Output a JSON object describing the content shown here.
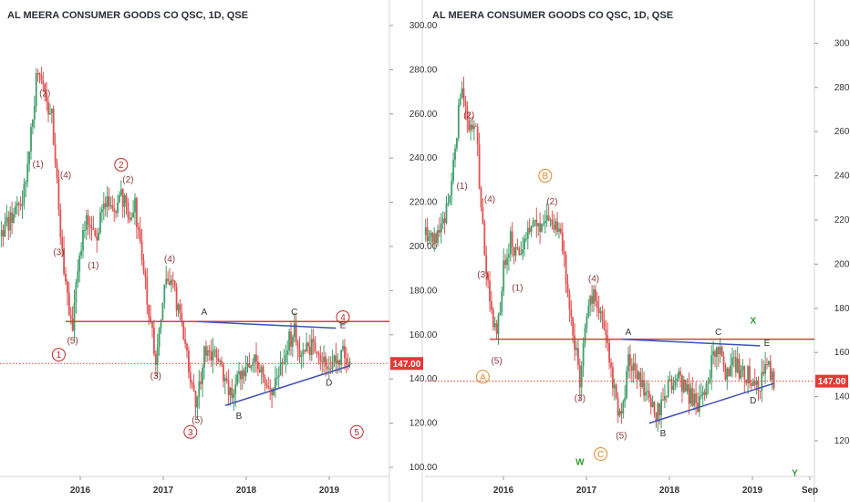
{
  "chart_data": [
    {
      "type": "candlestick",
      "title": "AL MEERA CONSUMER GOODS CO QSC, 1D, QSE",
      "y_ticks": [
        "300.00",
        "280.00",
        "260.00",
        "240.00",
        "220.00",
        "200.00",
        "180.00",
        "160.00",
        "140.00",
        "120.00",
        "100.00"
      ],
      "x_ticks": [
        "2016",
        "2017",
        "2018",
        "2019"
      ],
      "ylim": [
        100,
        300
      ],
      "last_price": 147.0,
      "last_price_label": "147.00",
      "price_path": [
        [
          "2015-01",
          205
        ],
        [
          "2015-03",
          212
        ],
        [
          "2015-05",
          225
        ],
        [
          "2015-07",
          282
        ],
        [
          "2015-08",
          265
        ],
        [
          "2015-09",
          262
        ],
        [
          "2015-10",
          215
        ],
        [
          "2015-11",
          180
        ],
        [
          "2015-12",
          165
        ],
        [
          "2016-01",
          198
        ],
        [
          "2016-02",
          212
        ],
        [
          "2016-03",
          203
        ],
        [
          "2016-05",
          220
        ],
        [
          "2016-06",
          215
        ],
        [
          "2016-07",
          222
        ],
        [
          "2016-08",
          216
        ],
        [
          "2016-09",
          218
        ],
        [
          "2016-10",
          195
        ],
        [
          "2016-11",
          170
        ],
        [
          "2016-12",
          148
        ],
        [
          "2017-01",
          178
        ],
        [
          "2017-02",
          185
        ],
        [
          "2017-03",
          175
        ],
        [
          "2017-04",
          162
        ],
        [
          "2017-05",
          142
        ],
        [
          "2017-06",
          128
        ],
        [
          "2017-07",
          155
        ],
        [
          "2017-08",
          152
        ],
        [
          "2017-10",
          140
        ],
        [
          "2017-11",
          130
        ],
        [
          "2017-12",
          140
        ],
        [
          "2018-02",
          150
        ],
        [
          "2018-04",
          140
        ],
        [
          "2018-05",
          135
        ],
        [
          "2018-07",
          155
        ],
        [
          "2018-08",
          163
        ],
        [
          "2018-09",
          148
        ],
        [
          "2018-10",
          155
        ],
        [
          "2018-12",
          150
        ],
        [
          "2019-02",
          146
        ],
        [
          "2019-03",
          155
        ],
        [
          "2019-04",
          147
        ]
      ],
      "support_line": 166,
      "dotted_line": 147,
      "upper_trend": [
        [
          "2017-06",
          166
        ],
        [
          "2019-02",
          163
        ]
      ],
      "lower_trend": [
        [
          "2017-10",
          128
        ],
        [
          "2019-04",
          146
        ]
      ],
      "annotations": [
        {
          "t": "(2)",
          "d": "2015-08",
          "p": 268,
          "color": "#8b3a3a"
        },
        {
          "t": "(1)",
          "d": "2015-07",
          "p": 236,
          "color": "#8b3a3a"
        },
        {
          "t": "(4)",
          "d": "2015-11",
          "p": 231,
          "color": "#8b3a3a"
        },
        {
          "t": "(3)",
          "d": "2015-10",
          "p": 196,
          "color": "#8b3a3a"
        },
        {
          "t": "(5)",
          "d": "2015-12",
          "p": 156,
          "color": "#8b3a3a"
        },
        {
          "t": "(1)",
          "d": "2016-03",
          "p": 190,
          "color": "#8b3a3a"
        },
        {
          "t": "(2)",
          "d": "2016-08",
          "p": 229,
          "color": "#8b3a3a"
        },
        {
          "t": "(3)",
          "d": "2016-12",
          "p": 140,
          "color": "#8b3a3a"
        },
        {
          "t": "(4)",
          "d": "2017-02",
          "p": 193,
          "color": "#8b3a3a"
        },
        {
          "t": "(5)",
          "d": "2017-06",
          "p": 120,
          "color": "#8b3a3a"
        },
        {
          "t": "A",
          "d": "2017-07",
          "p": 169,
          "color": "#333333"
        },
        {
          "t": "B",
          "d": "2017-12",
          "p": 122,
          "color": "#333333"
        },
        {
          "t": "C",
          "d": "2018-08",
          "p": 169,
          "color": "#333333"
        },
        {
          "t": "D",
          "d": "2019-01",
          "p": 137,
          "color": "#333333"
        },
        {
          "t": "E",
          "d": "2019-03",
          "p": 163,
          "color": "#333333"
        }
      ],
      "circled": [
        {
          "t": "1",
          "d": "2015-10",
          "p": 151,
          "color": "#c62828"
        },
        {
          "t": "2",
          "d": "2016-07",
          "p": 237,
          "color": "#c62828"
        },
        {
          "t": "3",
          "d": "2017-05",
          "p": 116,
          "color": "#c62828"
        },
        {
          "t": "4",
          "d": "2019-03",
          "p": 168,
          "color": "#c62828"
        },
        {
          "t": "5",
          "d": "2019-05",
          "p": 116,
          "color": "#c62828"
        }
      ],
      "plain_labels": []
    },
    {
      "type": "candlestick",
      "title": "AL MEERA CONSUMER GOODS CO QSC, 1D, QSE",
      "y_ticks": [
        "300.00",
        "280.00",
        "260.00",
        "240.00",
        "220.00",
        "200.00",
        "180.00",
        "160.00",
        "140.00",
        "120.00"
      ],
      "x_ticks": [
        "2016",
        "2017",
        "2018",
        "2019",
        "Sep"
      ],
      "ylim": [
        108,
        308
      ],
      "last_price": 147.0,
      "last_price_label": "147.00",
      "price_path": [
        [
          "2015-01",
          215
        ],
        [
          "2015-03",
          210
        ],
        [
          "2015-05",
          225
        ],
        [
          "2015-07",
          282
        ],
        [
          "2015-08",
          265
        ],
        [
          "2015-09",
          262
        ],
        [
          "2015-10",
          215
        ],
        [
          "2015-11",
          180
        ],
        [
          "2015-12",
          165
        ],
        [
          "2016-01",
          198
        ],
        [
          "2016-02",
          212
        ],
        [
          "2016-03",
          203
        ],
        [
          "2016-05",
          220
        ],
        [
          "2016-06",
          215
        ],
        [
          "2016-07",
          222
        ],
        [
          "2016-08",
          216
        ],
        [
          "2016-09",
          218
        ],
        [
          "2016-10",
          195
        ],
        [
          "2016-11",
          170
        ],
        [
          "2016-12",
          148
        ],
        [
          "2017-01",
          178
        ],
        [
          "2017-02",
          185
        ],
        [
          "2017-03",
          175
        ],
        [
          "2017-04",
          162
        ],
        [
          "2017-05",
          142
        ],
        [
          "2017-06",
          128
        ],
        [
          "2017-07",
          155
        ],
        [
          "2017-08",
          152
        ],
        [
          "2017-10",
          140
        ],
        [
          "2017-11",
          130
        ],
        [
          "2017-12",
          140
        ],
        [
          "2018-02",
          150
        ],
        [
          "2018-04",
          140
        ],
        [
          "2018-05",
          135
        ],
        [
          "2018-07",
          155
        ],
        [
          "2018-08",
          163
        ],
        [
          "2018-09",
          148
        ],
        [
          "2018-10",
          155
        ],
        [
          "2018-12",
          150
        ],
        [
          "2019-02",
          146
        ],
        [
          "2019-03",
          155
        ],
        [
          "2019-04",
          147
        ]
      ],
      "support_line": 166,
      "dotted_line": 147,
      "upper_trend": [
        [
          "2017-06",
          166
        ],
        [
          "2019-02",
          163
        ]
      ],
      "lower_trend": [
        [
          "2017-10",
          128
        ],
        [
          "2019-04",
          146
        ]
      ],
      "annotations": [
        {
          "t": "(2)",
          "d": "2015-08",
          "p": 266,
          "color": "#8b3a3a"
        },
        {
          "t": "(1)",
          "d": "2015-07",
          "p": 234,
          "color": "#8b3a3a"
        },
        {
          "t": "(4)",
          "d": "2015-11",
          "p": 228,
          "color": "#8b3a3a"
        },
        {
          "t": "(3)",
          "d": "2015-10",
          "p": 194,
          "color": "#8b3a3a"
        },
        {
          "t": "(5)",
          "d": "2015-12",
          "p": 155,
          "color": "#8b3a3a"
        },
        {
          "t": "(1)",
          "d": "2016-03",
          "p": 188,
          "color": "#8b3a3a"
        },
        {
          "t": "(2)",
          "d": "2016-08",
          "p": 227,
          "color": "#8b3a3a"
        },
        {
          "t": "(3)",
          "d": "2016-12",
          "p": 138,
          "color": "#8b3a3a"
        },
        {
          "t": "(4)",
          "d": "2017-02",
          "p": 192,
          "color": "#8b3a3a"
        },
        {
          "t": "(5)",
          "d": "2017-06",
          "p": 121,
          "color": "#8b3a3a"
        },
        {
          "t": "A",
          "d": "2017-07",
          "p": 168,
          "color": "#333333"
        },
        {
          "t": "B",
          "d": "2017-12",
          "p": 122,
          "color": "#333333"
        },
        {
          "t": "C",
          "d": "2018-08",
          "p": 168,
          "color": "#333333"
        },
        {
          "t": "D",
          "d": "2019-01",
          "p": 137,
          "color": "#333333"
        },
        {
          "t": "E",
          "d": "2019-03",
          "p": 163,
          "color": "#333333"
        }
      ],
      "circled": [
        {
          "t": "A",
          "d": "2015-10",
          "p": 149,
          "color": "#e08a2e"
        },
        {
          "t": "B",
          "d": "2016-07",
          "p": 240,
          "color": "#e08a2e"
        },
        {
          "t": "C",
          "d": "2017-03",
          "p": 114,
          "color": "#e08a2e"
        }
      ],
      "plain_labels": [
        {
          "t": "W",
          "d": "2016-12",
          "p": 109,
          "color": "#2e9b2e"
        },
        {
          "t": "X",
          "d": "2019-01",
          "p": 173,
          "color": "#2e9b2e"
        },
        {
          "t": "Y",
          "d": "2019-07",
          "p": 104,
          "color": "#2e9b2e"
        }
      ]
    }
  ]
}
